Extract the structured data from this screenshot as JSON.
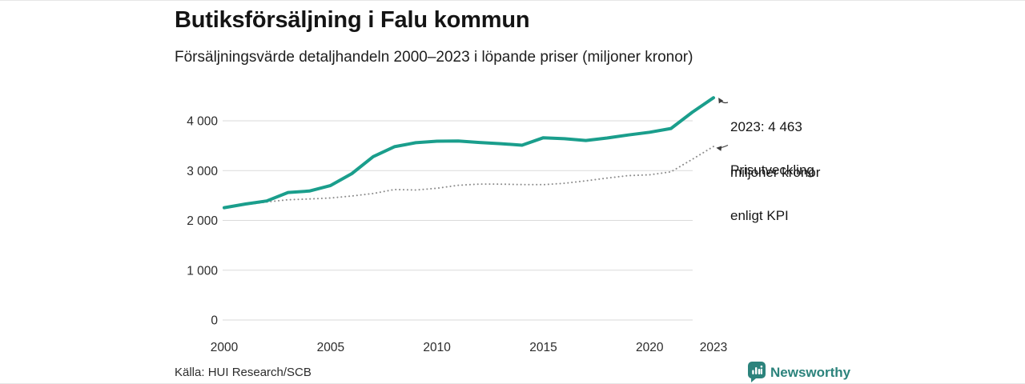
{
  "chart_data": {
    "type": "line",
    "title": "Butiksförsäljning i Falu kommun",
    "subtitle": "Försäljningsvärde detaljhandeln 2000–2023 i löpande priser (miljoner kronor)",
    "x": [
      2000,
      2001,
      2002,
      2003,
      2004,
      2005,
      2006,
      2007,
      2008,
      2009,
      2010,
      2011,
      2012,
      2013,
      2014,
      2015,
      2016,
      2017,
      2018,
      2019,
      2020,
      2021,
      2022,
      2023
    ],
    "series": [
      {
        "name": "Försäljningsvärde detaljhandeln, löpande priser",
        "color": "#1a9e8c",
        "line_style": "solid",
        "values": [
          2255,
          2330,
          2390,
          2560,
          2590,
          2700,
          2940,
          3280,
          3480,
          3560,
          3590,
          3595,
          3565,
          3540,
          3510,
          3660,
          3640,
          3605,
          3655,
          3715,
          3770,
          3845,
          4170,
          4463
        ]
      },
      {
        "name": "Prisutveckling enligt KPI",
        "color": "#8c8c8c",
        "line_style": "dotted",
        "values": [
          2255,
          2315,
          2370,
          2415,
          2430,
          2450,
          2490,
          2540,
          2620,
          2610,
          2645,
          2705,
          2730,
          2728,
          2720,
          2718,
          2745,
          2795,
          2850,
          2900,
          2915,
          2975,
          3225,
          3485
        ]
      }
    ],
    "ylim": [
      0,
      4600
    ],
    "yticks": [
      0,
      1000,
      2000,
      3000,
      4000
    ],
    "ytick_labels": [
      "0",
      "1 000",
      "2 000",
      "3 000",
      "4 000"
    ],
    "xticks": [
      2000,
      2005,
      2010,
      2015,
      2020,
      2023
    ],
    "xtick_labels": [
      "2000",
      "2005",
      "2010",
      "2015",
      "2020",
      "2023"
    ],
    "grid": "horizontal",
    "legend_position": "annotations-right",
    "annotations": [
      {
        "series": "sales",
        "year": 2023,
        "text_lines": [
          "2023: 4 463",
          "miljoner kronor"
        ]
      },
      {
        "series": "kpi",
        "year": 2023,
        "text_lines": [
          "Prisutveckling",
          "enligt KPI"
        ]
      }
    ]
  },
  "footer": {
    "source": "Källa: HUI Research/SCB",
    "brand": "Newsworthy"
  },
  "colors": {
    "accent_teal": "#1a9e8c",
    "brand_teal": "#2c837c",
    "grid_gray": "#dadada",
    "kpi_gray": "#8c8c8c",
    "text_dark": "#141414"
  }
}
